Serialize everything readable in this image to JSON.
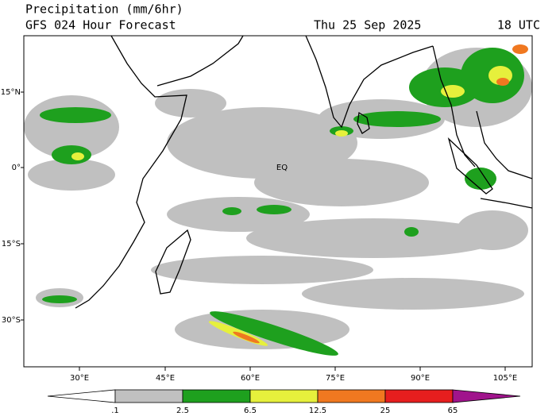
{
  "header": {
    "title": "Precipitation (mm/6hr)",
    "subtitle": "GFS 024 Hour Forecast",
    "date": "Thu 25 Sep 2025",
    "time": "18 UTC"
  },
  "map": {
    "lat_labels": [
      "15°N",
      "0°",
      "15°S",
      "30°S"
    ],
    "lon_labels": [
      "30°E",
      "45°E",
      "60°E",
      "75°E",
      "90°E",
      "105°E"
    ],
    "equator_label": "EQ"
  },
  "colorbar": {
    "labels": [
      ".1",
      "2.5",
      "6.5",
      "12.5",
      "25",
      "65"
    ],
    "colors": [
      "#ffffff",
      "#c0c0c0",
      "#1ea01e",
      "#e6f03c",
      "#f07820",
      "#e61e1e",
      "#a0148c"
    ]
  }
}
